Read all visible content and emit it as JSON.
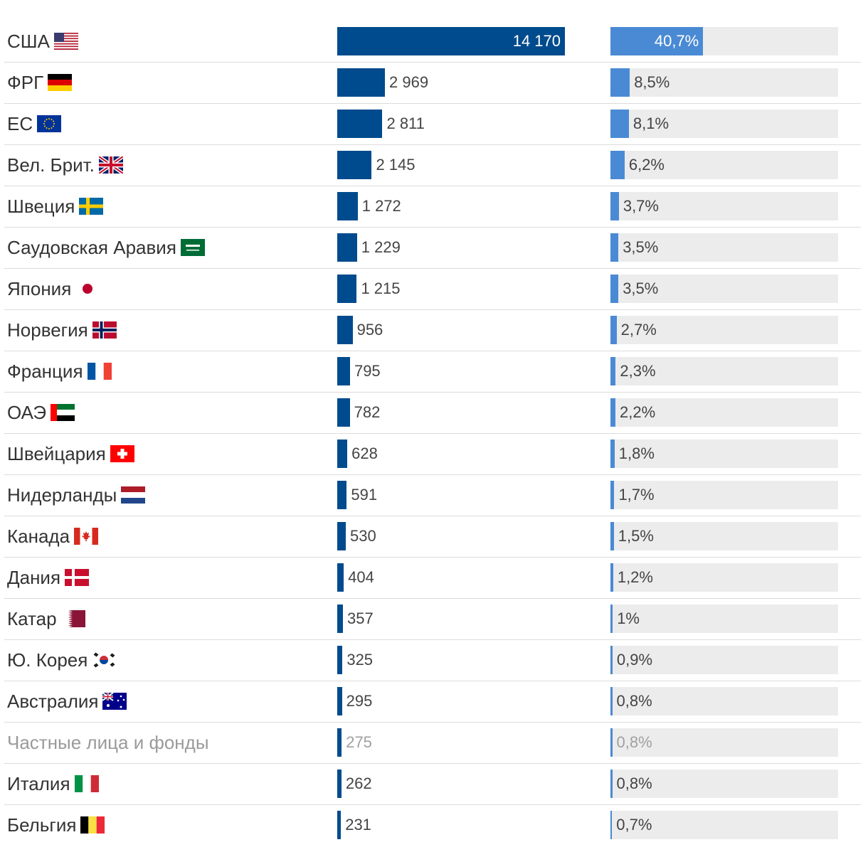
{
  "chart_data": {
    "type": "bar",
    "categories": [
      "США",
      "ФРГ",
      "ЕС",
      "Вел. Брит.",
      "Швеция",
      "Саудовская Аравия",
      "Япония",
      "Норвегия",
      "Франция",
      "ОАЭ",
      "Швейцария",
      "Нидерланды",
      "Канада",
      "Дания",
      "Катар",
      "Ю. Корея",
      "Австралия",
      "Частные лица и фонды",
      "Италия",
      "Бельгия"
    ],
    "series": [
      {
        "values": [
          14170,
          2969,
          2811,
          2145,
          1272,
          1229,
          1215,
          956,
          795,
          782,
          628,
          591,
          530,
          404,
          357,
          325,
          295,
          275,
          262,
          231
        ],
        "labels": [
          "14 170",
          "2 969",
          "2 811",
          "2 145",
          "1 272",
          "1 229",
          "1 215",
          "956",
          "795",
          "782",
          "628",
          "591",
          "530",
          "404",
          "357",
          "325",
          "295",
          "275",
          "262",
          "231"
        ]
      },
      {
        "values": [
          40.7,
          8.5,
          8.1,
          6.2,
          3.7,
          3.5,
          3.5,
          2.7,
          2.3,
          2.2,
          1.8,
          1.7,
          1.5,
          1.2,
          1.0,
          0.9,
          0.8,
          0.8,
          0.8,
          0.7
        ],
        "labels": [
          "40,7%",
          "8,5%",
          "8,1%",
          "6,2%",
          "3,7%",
          "3,5%",
          "3,5%",
          "2,7%",
          "2,3%",
          "2,2%",
          "1,8%",
          "1,7%",
          "1,5%",
          "1,2%",
          "1%",
          "0,9%",
          "0,8%",
          "0,8%",
          "0,8%",
          "0,7%"
        ]
      }
    ],
    "flags": [
      "us-flag",
      "de-flag",
      "eu-flag",
      "gb-flag",
      "se-flag",
      "sa-flag",
      "jp-flag",
      "no-flag",
      "fr-flag",
      "ae-flag",
      "ch-flag",
      "nl-flag",
      "ca-flag",
      "dk-flag",
      "qa-flag",
      "kr-flag",
      "au-flag",
      "",
      "it-flag",
      "be-flag"
    ],
    "muted_rows": [
      17
    ],
    "xlim_abs": [
      0,
      14170
    ],
    "xlim_pct": [
      0,
      100
    ],
    "colors": {
      "abs_bar": "#004b8d",
      "pct_bar": "#4a8ad4",
      "pct_track": "#ececec",
      "muted_text": "#9a9a9a"
    },
    "legend": "none",
    "grid": false
  }
}
